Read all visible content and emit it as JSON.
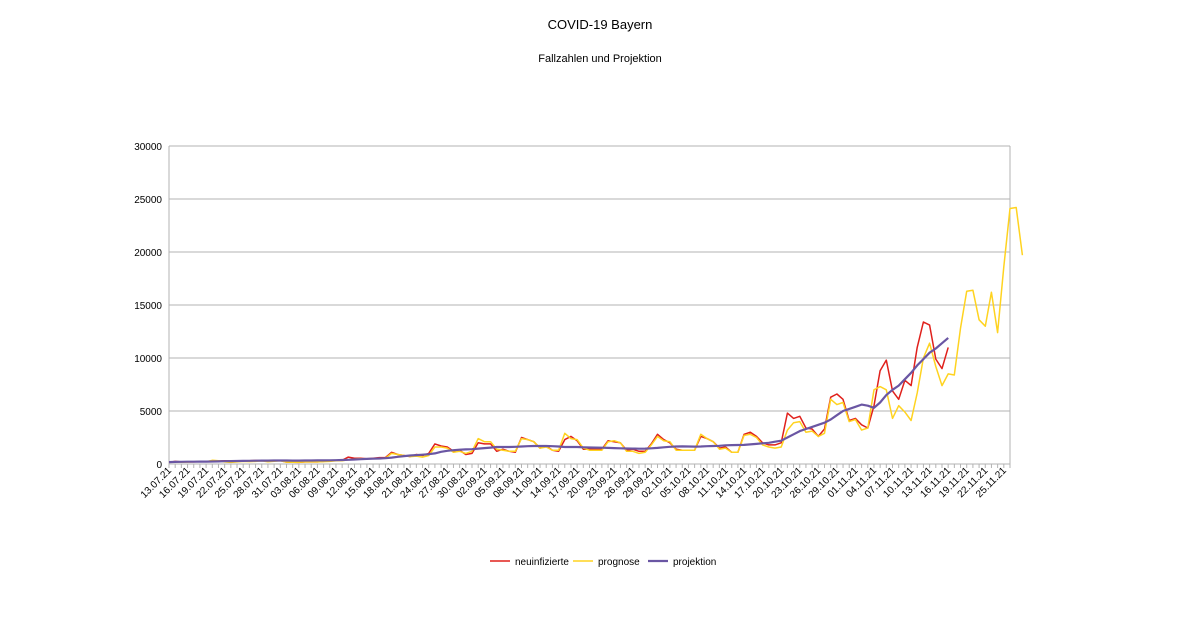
{
  "chart_data": {
    "type": "line",
    "title": "COVID-19 Bayern",
    "subtitle": "Fallzahlen und Projektion",
    "xlabel": "",
    "ylabel": "",
    "ylim": [
      0,
      30000
    ],
    "yticks": [
      0,
      5000,
      10000,
      15000,
      20000,
      25000,
      30000
    ],
    "grid": true,
    "legend": "bottom",
    "x_start": "13.07.21",
    "x_tick_labels": [
      "13.07.21",
      "16.07.21",
      "19.07.21",
      "22.07.21",
      "25.07.21",
      "28.07.21",
      "31.07.21",
      "03.08.21",
      "06.08.21",
      "09.08.21",
      "12.08.21",
      "15.08.21",
      "18.08.21",
      "21.08.21",
      "24.08.21",
      "27.08.21",
      "30.08.21",
      "02.09.21",
      "05.09.21",
      "08.09.21",
      "11.09.21",
      "14.09.21",
      "17.09.21",
      "20.09.21",
      "23.09.21",
      "26.09.21",
      "29.09.21",
      "02.10.21",
      "05.10.21",
      "08.10.21",
      "11.10.21",
      "14.10.21",
      "17.10.21",
      "20.10.21",
      "23.10.21",
      "26.10.21",
      "29.10.21",
      "01.11.21",
      "04.11.21",
      "07.11.21",
      "10.11.21",
      "13.11.21",
      "16.11.21",
      "19.11.21",
      "22.11.21",
      "25.11.21"
    ],
    "series": [
      {
        "name": "neuinfizierte",
        "color": "#e0201b",
        "values": [
          150,
          250,
          200,
          200,
          200,
          230,
          240,
          270,
          280,
          300,
          300,
          250,
          280,
          300,
          330,
          300,
          350,
          350,
          330,
          180,
          160,
          150,
          200,
          220,
          200,
          250,
          300,
          330,
          350,
          650,
          550,
          550,
          500,
          550,
          600,
          600,
          1100,
          900,
          800,
          700,
          900,
          800,
          1000,
          1900,
          1700,
          1600,
          1200,
          1300,
          900,
          1000,
          2000,
          1900,
          1900,
          1200,
          1400,
          1200,
          1100,
          2500,
          2300,
          2100,
          1500,
          1700,
          1300,
          1200,
          2300,
          2600,
          2200,
          1400,
          1400,
          1400,
          1400,
          2200,
          2100,
          2000,
          1300,
          1400,
          1200,
          1200,
          1900,
          2800,
          2300,
          2000,
          1400,
          1300,
          1300,
          1300,
          2600,
          2400,
          2100,
          1500,
          1600,
          1100,
          1100,
          2800,
          3000,
          2600,
          2000,
          1800,
          1800,
          2000,
          4800,
          4300,
          4500,
          3400,
          3300,
          2600,
          3300,
          6300,
          6600,
          6100,
          4100,
          4300,
          3700,
          3400,
          5500,
          8800,
          9800,
          6900,
          6100,
          7900,
          7400,
          11000,
          13400,
          13100,
          9900,
          9000,
          11000
        ]
      },
      {
        "name": "prognose",
        "color": "#ffd320",
        "values": [
          150,
          220,
          180,
          190,
          210,
          250,
          220,
          350,
          300,
          200,
          150,
          200,
          250,
          230,
          250,
          290,
          210,
          260,
          300,
          180,
          170,
          170,
          200,
          200,
          200,
          230,
          250,
          300,
          300,
          400,
          450,
          500,
          500,
          500,
          550,
          550,
          1000,
          900,
          800,
          700,
          750,
          650,
          800,
          1600,
          1600,
          1500,
          1100,
          1200,
          1000,
          1200,
          2400,
          2100,
          2100,
          1400,
          1300,
          1200,
          1200,
          2400,
          2300,
          2100,
          1500,
          1600,
          1300,
          1300,
          2900,
          2400,
          2300,
          1500,
          1300,
          1300,
          1300,
          2100,
          2200,
          2000,
          1200,
          1200,
          1000,
          1100,
          1800,
          2600,
          2200,
          2100,
          1300,
          1300,
          1300,
          1300,
          2800,
          2400,
          2100,
          1400,
          1500,
          1100,
          1100,
          2700,
          2800,
          2500,
          1800,
          1600,
          1500,
          1600,
          3200,
          3900,
          4000,
          3000,
          3100,
          2600,
          2900,
          6100,
          5600,
          5800,
          4000,
          4200,
          3200,
          3400,
          7000,
          7300,
          7000,
          4300,
          5500,
          4900,
          4100,
          6700,
          10000,
          11400,
          9200,
          7400,
          8500,
          8400,
          12800,
          16300,
          16400,
          13600,
          13000,
          16200,
          12400,
          18600,
          24100,
          24200,
          19700
        ]
      },
      {
        "name": "projektion",
        "color": "#6a56a3",
        "values": [
          180,
          200,
          210,
          215,
          220,
          225,
          230,
          240,
          250,
          260,
          270,
          280,
          290,
          300,
          310,
          320,
          320,
          330,
          330,
          330,
          320,
          320,
          330,
          330,
          340,
          340,
          350,
          360,
          380,
          400,
          420,
          450,
          480,
          500,
          520,
          550,
          600,
          680,
          750,
          800,
          840,
          880,
          920,
          1000,
          1150,
          1250,
          1300,
          1350,
          1380,
          1400,
          1450,
          1500,
          1550,
          1600,
          1600,
          1600,
          1620,
          1650,
          1680,
          1700,
          1700,
          1700,
          1680,
          1650,
          1600,
          1600,
          1600,
          1580,
          1560,
          1550,
          1540,
          1520,
          1500,
          1480,
          1460,
          1450,
          1440,
          1450,
          1480,
          1520,
          1580,
          1620,
          1650,
          1660,
          1650,
          1640,
          1650,
          1680,
          1700,
          1720,
          1760,
          1780,
          1790,
          1800,
          1850,
          1900,
          1950,
          2000,
          2100,
          2200,
          2500,
          2800,
          3100,
          3300,
          3500,
          3700,
          3900,
          4200,
          4600,
          5000,
          5200,
          5400,
          5600,
          5500,
          5300,
          5800,
          6500,
          7000,
          7400,
          8000,
          8600,
          9300,
          9900,
          10500,
          10900,
          11400,
          11900
        ]
      }
    ]
  }
}
